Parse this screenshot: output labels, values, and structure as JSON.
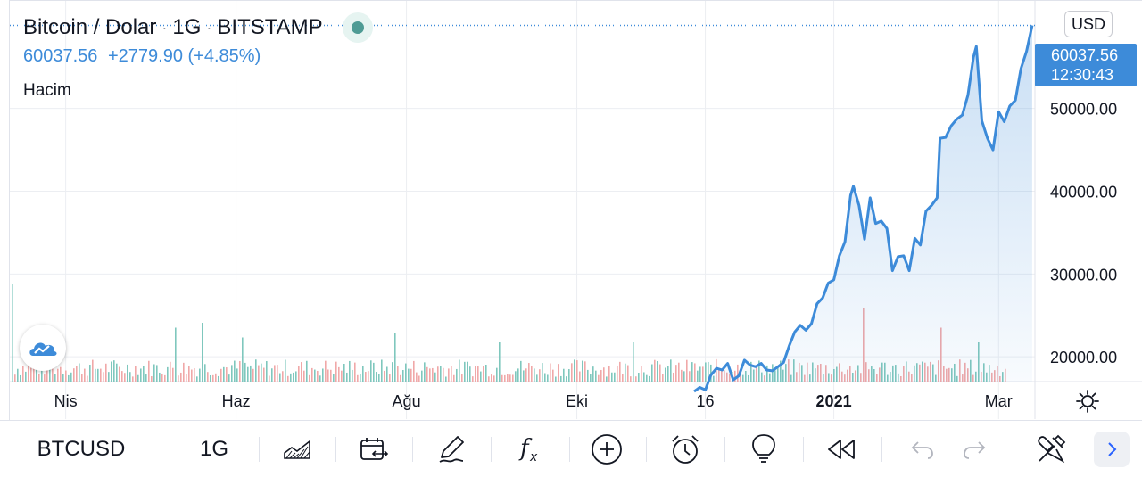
{
  "header": {
    "symbol_name": "Bitcoin / Dolar",
    "interval": "1G",
    "exchange": "BITSTAMP",
    "last_price": "60037.56",
    "change": "+2779.90 (+4.85%)",
    "volume_label": "Hacim"
  },
  "currency_button": "USD",
  "price_tag": {
    "price": "60037.56",
    "countdown": "12:30:43"
  },
  "toolbar": {
    "symbol": "BTCUSD",
    "interval": "1G",
    "icons": [
      "chart-type-icon",
      "date-range-icon",
      "draw-icon",
      "indicators-icon",
      "add-icon",
      "alert-icon",
      "ideas-icon",
      "replay-icon",
      "undo-icon",
      "redo-icon",
      "tools-icon",
      "next-icon"
    ]
  },
  "colors": {
    "line": "#3d8bd9",
    "vol_up": "#7fc7bd",
    "vol_down": "#f0a8a8",
    "grid": "#eceef2"
  },
  "chart_data": {
    "type": "area",
    "ylim": [
      17000,
      63000
    ],
    "yticks": [
      "50000.00",
      "40000.00",
      "30000.00",
      "20000.00"
    ],
    "ytick_values": [
      50000,
      40000,
      30000,
      20000
    ],
    "xticks": [
      {
        "label": "Nis",
        "date": "2020-04-01"
      },
      {
        "label": "Haz",
        "date": "2020-06-01"
      },
      {
        "label": "Ağu",
        "date": "2020-08-01"
      },
      {
        "label": "Eki",
        "date": "2020-10-01"
      },
      {
        "label": "16",
        "date": "2020-11-16"
      },
      {
        "label": "2021",
        "date": "2021-01-01"
      },
      {
        "label": "Mar",
        "date": "2021-03-01"
      }
    ],
    "xrange": [
      "2020-03-12",
      "2021-03-14"
    ],
    "series": [
      {
        "x": [
          "2020-11-12",
          "2020-11-14",
          "2020-11-16",
          "2020-11-18",
          "2020-11-20",
          "2020-11-22",
          "2020-11-24",
          "2020-11-26",
          "2020-11-28",
          "2020-11-30",
          "2020-12-02",
          "2020-12-04",
          "2020-12-06",
          "2020-12-08",
          "2020-12-10",
          "2020-12-12",
          "2020-12-14",
          "2020-12-16",
          "2020-12-18",
          "2020-12-20",
          "2020-12-22",
          "2020-12-24",
          "2020-12-26",
          "2020-12-28",
          "2020-12-30",
          "2021-01-01",
          "2021-01-03",
          "2021-01-05",
          "2021-01-07",
          "2021-01-08",
          "2021-01-10",
          "2021-01-12",
          "2021-01-14",
          "2021-01-16",
          "2021-01-18",
          "2021-01-20",
          "2021-01-22",
          "2021-01-24",
          "2021-01-26",
          "2021-01-28",
          "2021-01-30",
          "2021-02-01",
          "2021-02-03",
          "2021-02-05",
          "2021-02-07",
          "2021-02-08",
          "2021-02-10",
          "2021-02-12",
          "2021-02-14",
          "2021-02-16",
          "2021-02-18",
          "2021-02-20",
          "2021-02-21",
          "2021-02-23",
          "2021-02-25",
          "2021-02-27",
          "2021-03-01",
          "2021-03-03",
          "2021-03-05",
          "2021-03-07",
          "2021-03-09",
          "2021-03-11",
          "2021-03-13"
        ],
        "y": [
          15800,
          16300,
          16000,
          17800,
          18600,
          18400,
          19200,
          17200,
          17700,
          19600,
          19000,
          18800,
          19200,
          18400,
          18300,
          18800,
          19300,
          21300,
          23000,
          23800,
          23200,
          24000,
          26400,
          27100,
          28900,
          29300,
          32200,
          33900,
          39500,
          40600,
          38300,
          34200,
          39200,
          36100,
          36400,
          35500,
          30400,
          32100,
          32200,
          30400,
          34300,
          33500,
          37600,
          38300,
          39200,
          46400,
          46500,
          47900,
          48700,
          49200,
          51600,
          56200,
          57500,
          48500,
          46400,
          45000,
          49600,
          48400,
          50300,
          51000,
          54800,
          56900,
          60037
        ]
      }
    ],
    "volume_spikes": [
      {
        "date": "2020-03-13",
        "value": 1.0
      },
      {
        "date": "2020-05-10",
        "value": 0.55
      },
      {
        "date": "2020-05-20",
        "value": 0.6
      },
      {
        "date": "2020-06-03",
        "value": 0.45
      },
      {
        "date": "2020-07-28",
        "value": 0.5
      },
      {
        "date": "2020-09-03",
        "value": 0.4
      },
      {
        "date": "2020-10-21",
        "value": 0.4
      },
      {
        "date": "2021-01-11",
        "value": 0.75
      },
      {
        "date": "2021-02-08",
        "value": 0.55
      },
      {
        "date": "2021-02-22",
        "value": 0.4
      }
    ]
  }
}
